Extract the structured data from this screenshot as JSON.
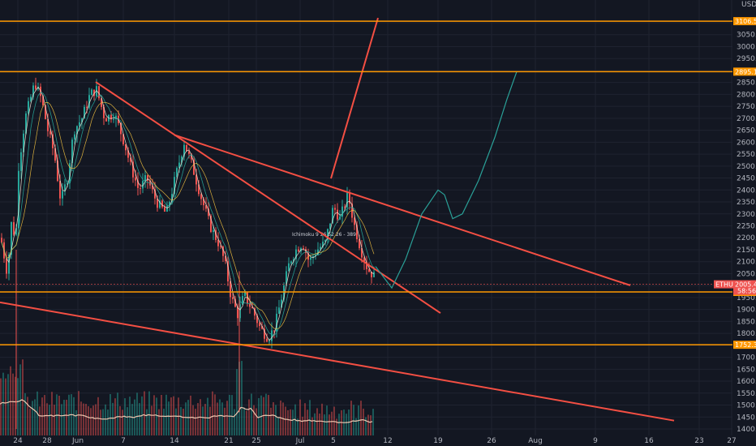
{
  "chart_data": {
    "type": "candlestick",
    "currency": "USD",
    "y_ticks": [
      1400,
      1450,
      1500,
      1550,
      1600,
      1650,
      1700,
      1750,
      1800,
      1850,
      1900,
      1950,
      2000,
      2050,
      2100,
      2150,
      2200,
      2250,
      2300,
      2350,
      2400,
      2450,
      2500,
      2550,
      2600,
      2650,
      2700,
      2750,
      2800,
      2850,
      2900,
      2950,
      3000,
      3050,
      3100
    ],
    "x_ticks": [
      "24",
      "28",
      "Jun",
      "7",
      "14",
      "21",
      "25",
      "Jul",
      "5",
      "12",
      "19",
      "26",
      "Aug",
      "9",
      "16",
      "23",
      "27"
    ],
    "horizontal_levels": [
      {
        "label": "3106.50",
        "value": 3106.5
      },
      {
        "label": "2895.15",
        "value": 2895.15
      },
      {
        "label": "1973.47",
        "value": 1973.47
      },
      {
        "label": "1752.34",
        "value": 1752.34
      }
    ],
    "current_price": {
      "ticker": "ETHUSD",
      "value": "2005.49",
      "timer": "58:56"
    },
    "annotation": "Ichimoku 9 26 52 26 - 389"
  },
  "colors": {
    "background": "#131722",
    "grid": "#1f2330",
    "orange": "#ff9800",
    "trendline": "#f44f43",
    "up": "#26a69a",
    "down": "#ef5350",
    "projection": "#2aa198",
    "ma": "#e8e0d0"
  }
}
